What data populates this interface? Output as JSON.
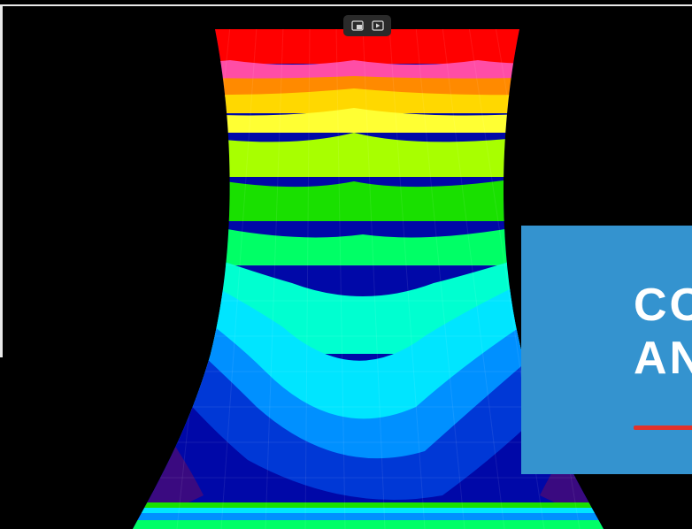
{
  "toolbar": {
    "icons": [
      "picture-in-picture-icon",
      "play-screen-icon"
    ]
  },
  "card": {
    "title_line1": "CO",
    "title_line2": "AN",
    "background_color": "#3493cf",
    "accent_color": "#e2322a"
  },
  "visualization": {
    "contour_colors": [
      "#ff0000",
      "#ff4da6",
      "#ff8a00",
      "#ffd800",
      "#ffff33",
      "#a8ff00",
      "#19e000",
      "#00ff66",
      "#00ffd0",
      "#00e5ff",
      "#0090ff",
      "#0038d6",
      "#0008a8",
      "#3a0a80"
    ]
  }
}
